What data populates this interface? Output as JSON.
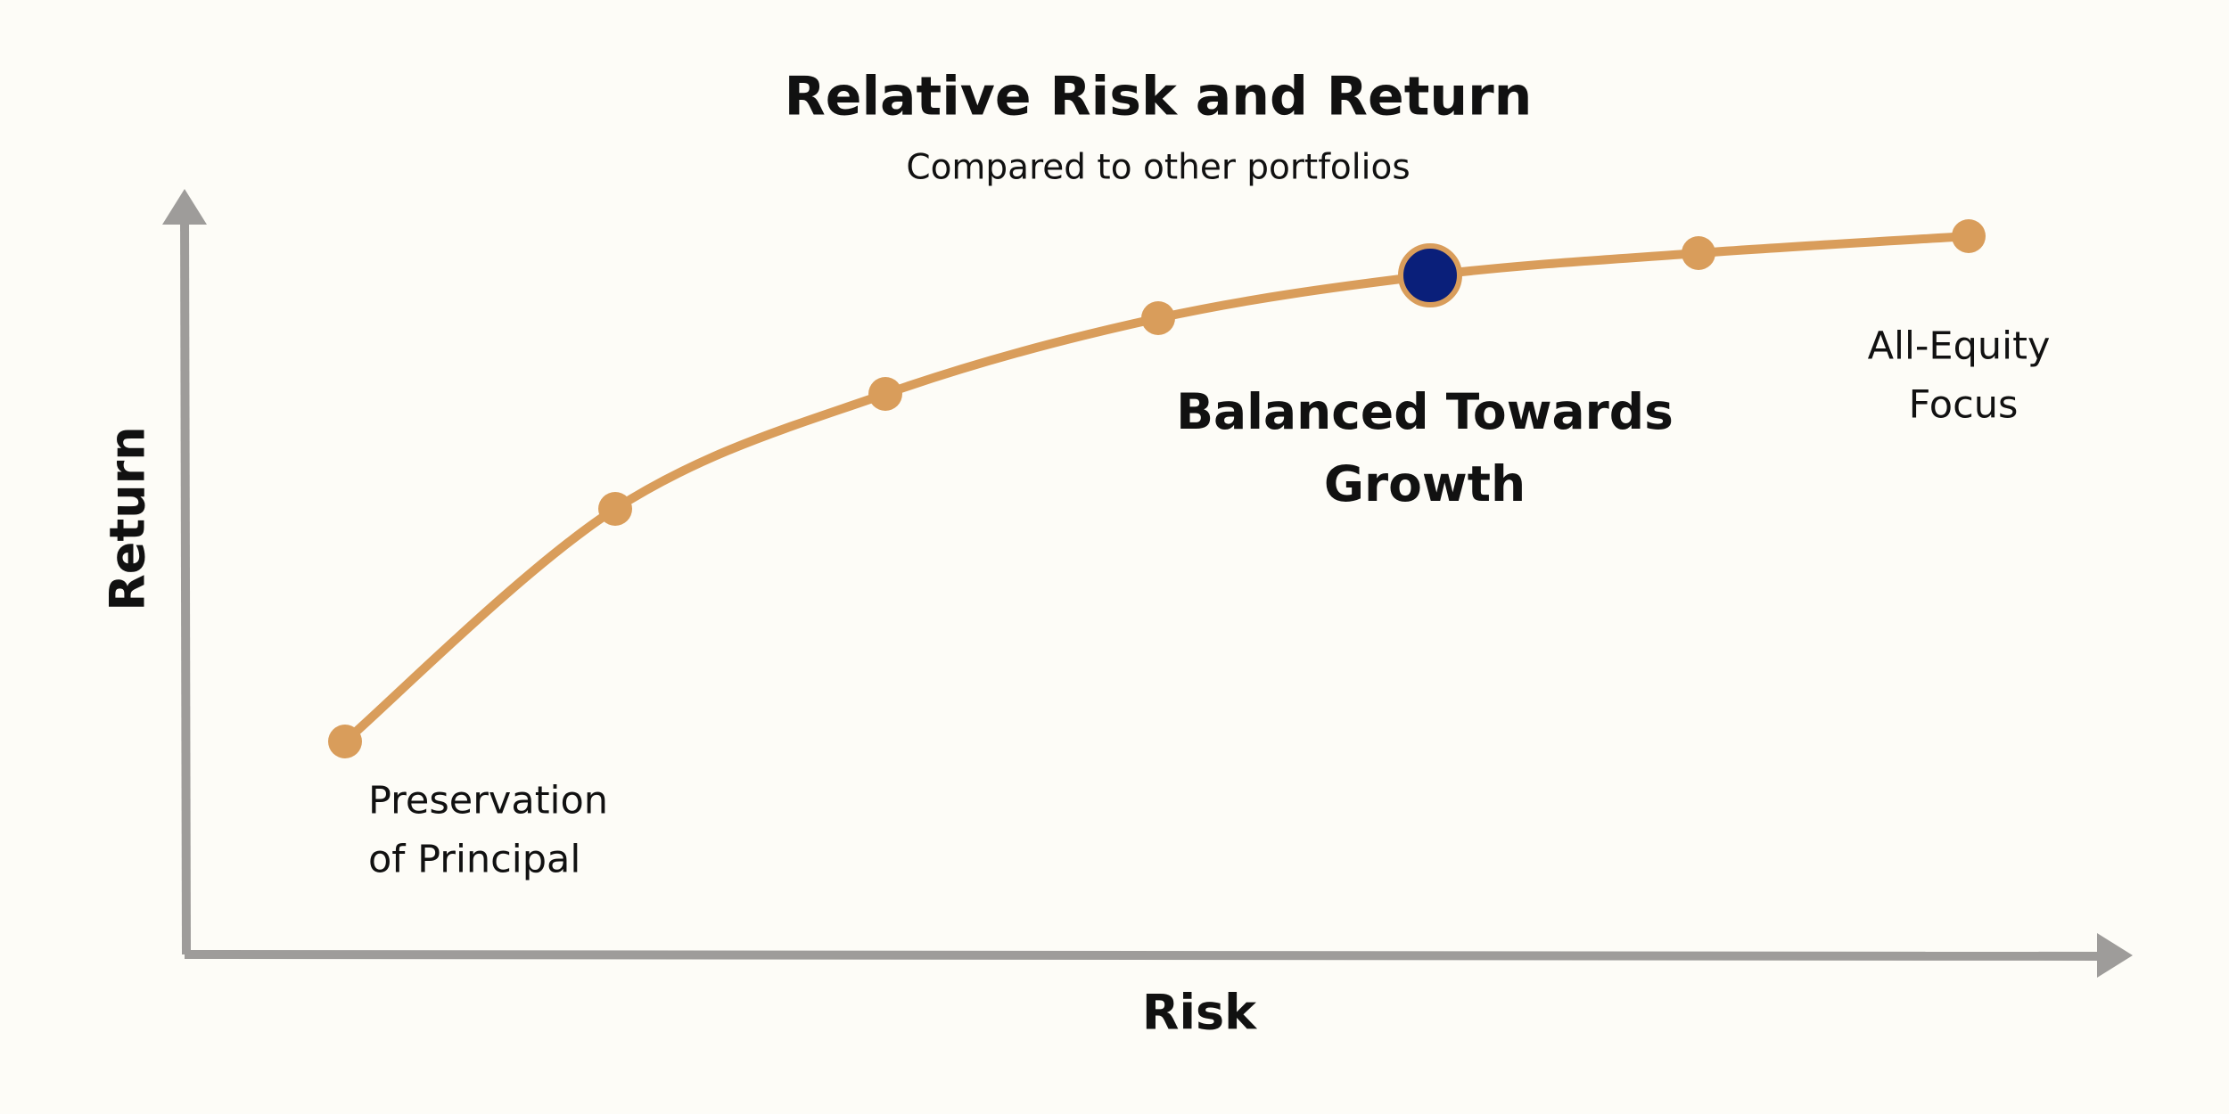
{
  "title": "Relative Risk and Return",
  "subtitle": "Compared to other portfolios",
  "axes": {
    "x_label": "Risk",
    "y_label": "Return"
  },
  "annotations": {
    "low": [
      "Preservation",
      "of Principal"
    ],
    "selected": [
      "Balanced Towards",
      "Growth"
    ],
    "high": [
      "All-Equity",
      "Focus"
    ]
  }
}
